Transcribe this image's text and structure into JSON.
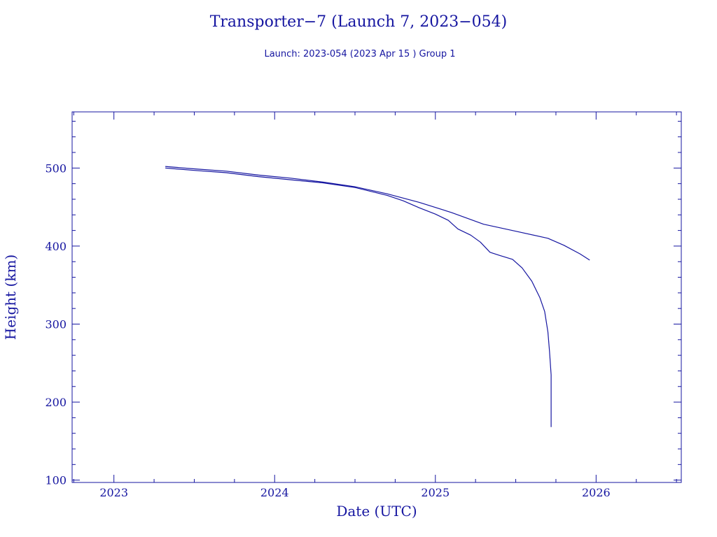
{
  "chart_data": {
    "type": "line",
    "title": "Transporter−7 (Launch 7, 2023−054)",
    "subtitle": "Launch: 2023-054  (2023 Apr 15 )  Group 1",
    "xlabel": "Date (UTC)",
    "ylabel": "Height (km)",
    "xlim": [
      2022.74,
      2026.53
    ],
    "ylim": [
      97,
      572
    ],
    "x_ticks": [
      "2023",
      "2024",
      "2025",
      "2026"
    ],
    "y_ticks": [
      "100",
      "200",
      "300",
      "400",
      "500"
    ],
    "grid": false,
    "series": [
      {
        "color": "#1515a0",
        "points": [
          [
            2023.32,
            502
          ],
          [
            2023.5,
            499
          ],
          [
            2023.7,
            496
          ],
          [
            2023.9,
            491
          ],
          [
            2024.1,
            487
          ],
          [
            2024.3,
            482
          ],
          [
            2024.5,
            476
          ],
          [
            2024.7,
            467
          ],
          [
            2024.9,
            456
          ],
          [
            2025.1,
            443
          ],
          [
            2025.3,
            428
          ],
          [
            2025.5,
            419
          ],
          [
            2025.7,
            410
          ],
          [
            2025.8,
            401
          ],
          [
            2025.9,
            390
          ],
          [
            2025.96,
            382
          ]
        ]
      },
      {
        "color": "#1515a0",
        "points": [
          [
            2023.32,
            500
          ],
          [
            2023.5,
            497
          ],
          [
            2023.7,
            494
          ],
          [
            2023.9,
            489
          ],
          [
            2024.1,
            485
          ],
          [
            2024.3,
            481
          ],
          [
            2024.5,
            475
          ],
          [
            2024.7,
            465
          ],
          [
            2024.8,
            458
          ],
          [
            2024.9,
            449
          ],
          [
            2025.0,
            441
          ],
          [
            2025.08,
            433
          ],
          [
            2025.14,
            422
          ],
          [
            2025.22,
            414
          ],
          [
            2025.28,
            405
          ],
          [
            2025.34,
            392
          ],
          [
            2025.4,
            388
          ],
          [
            2025.48,
            383
          ],
          [
            2025.54,
            372
          ],
          [
            2025.6,
            355
          ],
          [
            2025.65,
            334
          ],
          [
            2025.68,
            316
          ],
          [
            2025.7,
            290
          ],
          [
            2025.71,
            265
          ],
          [
            2025.72,
            235
          ],
          [
            2025.72,
            205
          ],
          [
            2025.72,
            168
          ]
        ]
      }
    ]
  }
}
